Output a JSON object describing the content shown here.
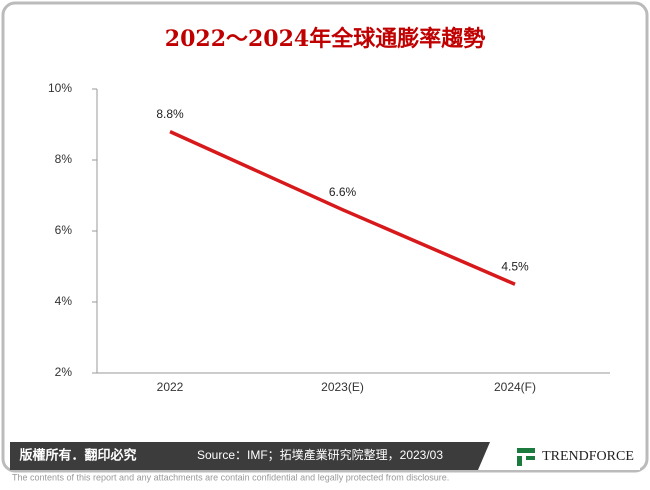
{
  "chart_data": {
    "type": "line",
    "title": "2022～2024年全球通膨率趨勢",
    "categories": [
      "2022",
      "2023(E)",
      "2024(F)"
    ],
    "values": [
      8.8,
      6.6,
      4.5
    ],
    "value_labels": [
      "8.8%",
      "6.6%",
      "4.5%"
    ],
    "color": "#d7191c",
    "ylim": [
      2,
      10
    ],
    "yticks": [
      {
        "value": 2,
        "label": "2%"
      },
      {
        "value": 4,
        "label": "4%"
      },
      {
        "value": 6,
        "label": "6%"
      },
      {
        "value": 8,
        "label": "8%"
      },
      {
        "value": 10,
        "label": "10%"
      }
    ],
    "grid": false
  },
  "footer": {
    "copyright": "版權所有．翻印必究",
    "source": "Source：IMF；拓墣產業研究院整理，2023/03",
    "brand": "TRENDFORCE",
    "disclaimer": "The contents of this report and any attachments are contain confidential and legally protected from disclosure."
  }
}
